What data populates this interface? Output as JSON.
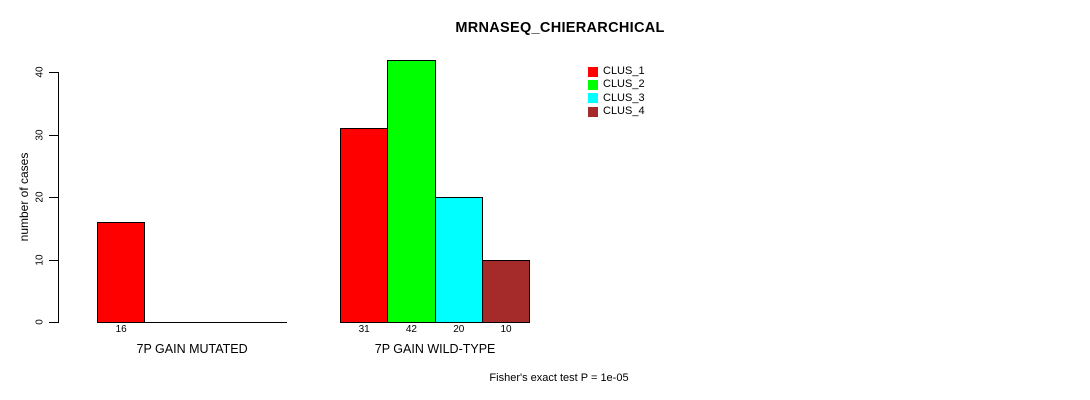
{
  "title": "MRNASEQ_CHIERARCHICAL",
  "footer": "Fisher's exact test P = 1e-05",
  "y_axis": {
    "label": "number of cases",
    "ticks": [
      0,
      10,
      20,
      30,
      40
    ]
  },
  "legend": {
    "position": "top-right",
    "items": [
      {
        "label": "CLUS_1",
        "color": "#FF0000"
      },
      {
        "label": "CLUS_2",
        "color": "#00FF00"
      },
      {
        "label": "CLUS_3",
        "color": "#00FFFF"
      },
      {
        "label": "CLUS_4",
        "color": "#A52A2A"
      }
    ]
  },
  "chart_data": {
    "type": "bar",
    "title": "MRNASEQ_CHIERARCHICAL",
    "xlabel": "",
    "ylabel": "number of cases",
    "ylim": [
      0,
      42
    ],
    "yticks": [
      0,
      10,
      20,
      30,
      40
    ],
    "grid": false,
    "legend_position": "top-right",
    "series": [
      "CLUS_1",
      "CLUS_2",
      "CLUS_3",
      "CLUS_4"
    ],
    "colors": [
      "#FF0000",
      "#00FF00",
      "#00FFFF",
      "#A52A2A"
    ],
    "groups": [
      {
        "label": "7P GAIN MUTATED",
        "values": [
          16,
          0,
          0,
          0
        ]
      },
      {
        "label": "7P GAIN WILD-TYPE",
        "values": [
          31,
          42,
          20,
          10
        ]
      }
    ],
    "bar_value_labels_shown": true,
    "annotation": "Fisher's exact test P = 1e-05"
  }
}
